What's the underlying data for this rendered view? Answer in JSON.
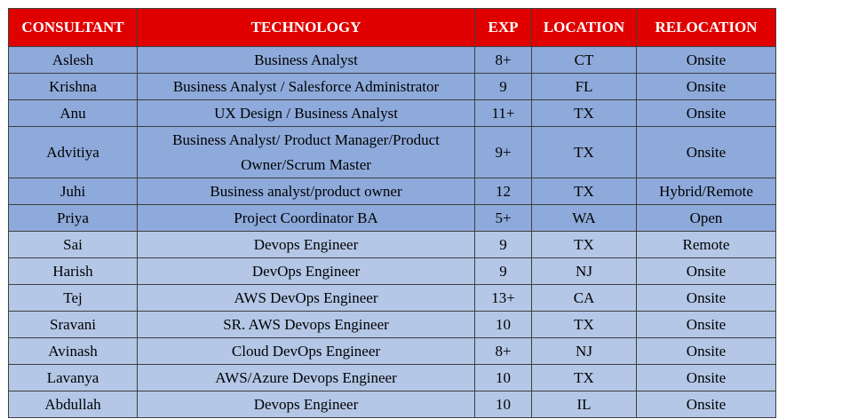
{
  "table": {
    "headers": {
      "consultant": "CONSULTANT",
      "technology": "TECHNOLOGY",
      "exp": "EXP",
      "location": "LOCATION",
      "relocation": "RELOCATION"
    },
    "rows": [
      {
        "consultant": "Aslesh",
        "technology": "Business Analyst",
        "exp": "8+",
        "location": "CT",
        "relocation": "Onsite"
      },
      {
        "consultant": "Krishna",
        "technology": "Business Analyst / Salesforce Administrator",
        "exp": "9",
        "location": "FL",
        "relocation": "Onsite"
      },
      {
        "consultant": "Anu",
        "technology": "UX Design / Business Analyst",
        "exp": "11+",
        "location": "TX",
        "relocation": "Onsite"
      },
      {
        "consultant": "Advitiya",
        "technology": "Business Analyst/ Product Manager/Product Owner/Scrum Master",
        "exp": "9+",
        "location": "TX",
        "relocation": "Onsite"
      },
      {
        "consultant": "Juhi",
        "technology": "Business analyst/product owner",
        "exp": "12",
        "location": "TX",
        "relocation": "Hybrid/Remote"
      },
      {
        "consultant": "Priya",
        "technology": "Project Coordinator BA",
        "exp": "5+",
        "location": "WA",
        "relocation": "Open"
      },
      {
        "consultant": "Sai",
        "technology": "Devops Engineer",
        "exp": "9",
        "location": "TX",
        "relocation": "Remote"
      },
      {
        "consultant": "Harish",
        "technology": "DevOps Engineer",
        "exp": "9",
        "location": "NJ",
        "relocation": "Onsite"
      },
      {
        "consultant": "Tej",
        "technology": "AWS DevOps Engineer",
        "exp": "13+",
        "location": "CA",
        "relocation": "Onsite"
      },
      {
        "consultant": "Sravani",
        "technology": "SR. AWS Devops Engineer",
        "exp": "10",
        "location": "TX",
        "relocation": "Onsite"
      },
      {
        "consultant": "Avinash",
        "technology": "Cloud DevOps Engineer",
        "exp": "8+",
        "location": "NJ",
        "relocation": "Onsite"
      },
      {
        "consultant": "Lavanya",
        "technology": "AWS/Azure Devops Engineer",
        "exp": "10",
        "location": "TX",
        "relocation": "Onsite"
      },
      {
        "consultant": "Abdullah",
        "technology": "Devops Engineer",
        "exp": "10",
        "location": "IL",
        "relocation": "Onsite"
      }
    ]
  },
  "colors": {
    "header_bg": "#e00000",
    "header_text": "#ffffff",
    "row_dark": "#8eaadb",
    "row_light": "#b4c7e7",
    "border": "#3f3f3f"
  }
}
